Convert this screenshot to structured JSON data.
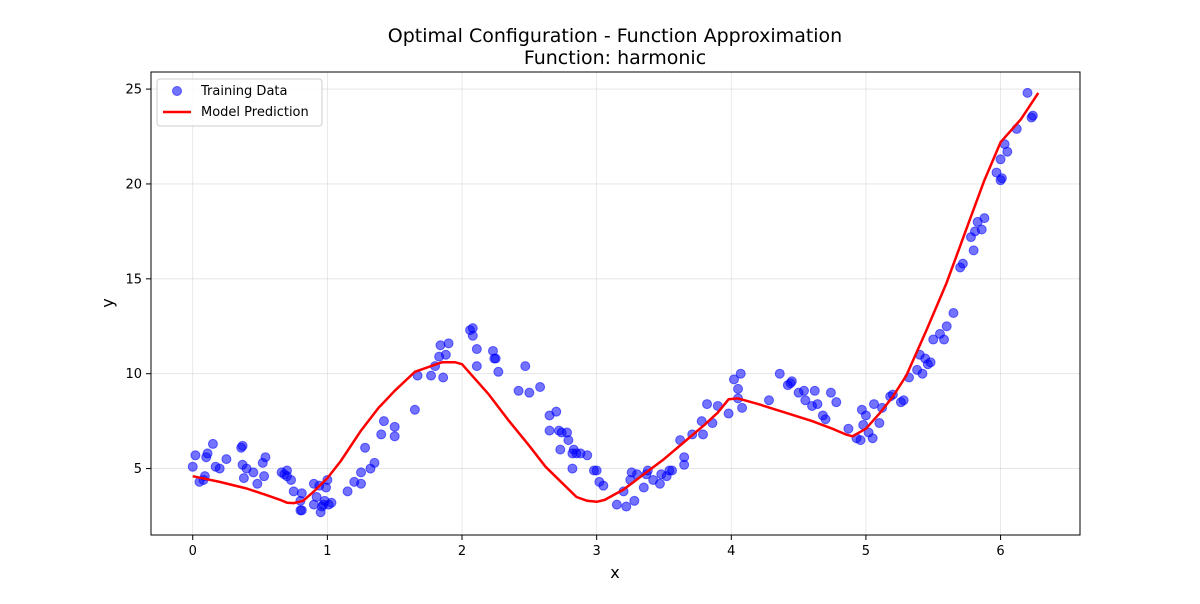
{
  "chart_data": {
    "type": "scatter",
    "title": "Optimal Configuration - Function Approximation",
    "subtitle": "Function: harmonic",
    "xlabel": "x",
    "ylabel": "y",
    "xlim": [
      -0.31,
      6.59
    ],
    "ylim": [
      1.5,
      25.9
    ],
    "xticks": [
      0,
      1,
      2,
      3,
      4,
      5,
      6
    ],
    "yticks": [
      5,
      10,
      15,
      20,
      25
    ],
    "grid": true,
    "legend_position": "top-left",
    "colors": {
      "scatter": "#0000ff",
      "line": "#ff0000"
    },
    "series": [
      {
        "name": "Training Data",
        "kind": "scatter",
        "points": [
          [
            0.0,
            5.1
          ],
          [
            0.02,
            5.7
          ],
          [
            0.05,
            4.3
          ],
          [
            0.08,
            4.4
          ],
          [
            0.09,
            4.6
          ],
          [
            0.1,
            5.6
          ],
          [
            0.11,
            5.8
          ],
          [
            0.15,
            6.3
          ],
          [
            0.17,
            5.1
          ],
          [
            0.2,
            5.0
          ],
          [
            0.25,
            5.5
          ],
          [
            0.36,
            6.1
          ],
          [
            0.37,
            6.2
          ],
          [
            0.37,
            5.2
          ],
          [
            0.38,
            4.5
          ],
          [
            0.4,
            5.0
          ],
          [
            0.45,
            4.8
          ],
          [
            0.48,
            4.2
          ],
          [
            0.52,
            5.3
          ],
          [
            0.54,
            5.6
          ],
          [
            0.53,
            4.6
          ],
          [
            0.66,
            4.8
          ],
          [
            0.68,
            4.7
          ],
          [
            0.7,
            4.9
          ],
          [
            0.7,
            4.6
          ],
          [
            0.73,
            4.4
          ],
          [
            0.75,
            3.8
          ],
          [
            0.8,
            3.3
          ],
          [
            0.8,
            2.8
          ],
          [
            0.81,
            2.8
          ],
          [
            0.81,
            3.7
          ],
          [
            0.9,
            4.2
          ],
          [
            0.9,
            3.1
          ],
          [
            0.92,
            3.5
          ],
          [
            0.94,
            4.1
          ],
          [
            0.95,
            2.7
          ],
          [
            0.96,
            3.0
          ],
          [
            0.97,
            3.1
          ],
          [
            0.98,
            3.3
          ],
          [
            0.99,
            4.0
          ],
          [
            1.0,
            4.4
          ],
          [
            1.01,
            3.1
          ],
          [
            1.03,
            3.2
          ],
          [
            1.15,
            3.8
          ],
          [
            1.2,
            4.3
          ],
          [
            1.25,
            4.2
          ],
          [
            1.25,
            4.8
          ],
          [
            1.28,
            6.1
          ],
          [
            1.32,
            5.0
          ],
          [
            1.35,
            5.3
          ],
          [
            1.4,
            6.8
          ],
          [
            1.42,
            7.5
          ],
          [
            1.5,
            6.7
          ],
          [
            1.5,
            7.2
          ],
          [
            1.65,
            8.1
          ],
          [
            1.67,
            9.9
          ],
          [
            1.77,
            9.9
          ],
          [
            1.8,
            10.4
          ],
          [
            1.83,
            10.9
          ],
          [
            1.84,
            11.5
          ],
          [
            1.86,
            9.8
          ],
          [
            1.88,
            11.0
          ],
          [
            1.9,
            11.6
          ],
          [
            2.06,
            12.3
          ],
          [
            2.08,
            12.4
          ],
          [
            2.08,
            12.0
          ],
          [
            2.11,
            11.3
          ],
          [
            2.11,
            10.4
          ],
          [
            2.23,
            11.2
          ],
          [
            2.24,
            10.8
          ],
          [
            2.25,
            10.8
          ],
          [
            2.27,
            10.1
          ],
          [
            2.42,
            9.1
          ],
          [
            2.47,
            10.4
          ],
          [
            2.5,
            9.0
          ],
          [
            2.58,
            9.3
          ],
          [
            2.65,
            7.8
          ],
          [
            2.65,
            7.0
          ],
          [
            2.7,
            8.0
          ],
          [
            2.72,
            7.0
          ],
          [
            2.74,
            6.9
          ],
          [
            2.73,
            6.0
          ],
          [
            2.78,
            6.9
          ],
          [
            2.79,
            6.5
          ],
          [
            2.82,
            5.0
          ],
          [
            2.82,
            5.8
          ],
          [
            2.83,
            6.0
          ],
          [
            2.85,
            5.8
          ],
          [
            2.88,
            5.8
          ],
          [
            2.93,
            5.7
          ],
          [
            2.98,
            4.9
          ],
          [
            3.0,
            4.9
          ],
          [
            3.02,
            4.3
          ],
          [
            3.05,
            4.1
          ],
          [
            3.15,
            3.1
          ],
          [
            3.2,
            3.8
          ],
          [
            3.22,
            3.0
          ],
          [
            3.25,
            4.4
          ],
          [
            3.26,
            4.8
          ],
          [
            3.28,
            3.3
          ],
          [
            3.3,
            4.7
          ],
          [
            3.35,
            4.0
          ],
          [
            3.37,
            4.7
          ],
          [
            3.38,
            4.9
          ],
          [
            3.42,
            4.4
          ],
          [
            3.47,
            4.2
          ],
          [
            3.48,
            4.7
          ],
          [
            3.52,
            4.6
          ],
          [
            3.54,
            4.9
          ],
          [
            3.56,
            4.9
          ],
          [
            3.62,
            6.5
          ],
          [
            3.65,
            5.2
          ],
          [
            3.65,
            5.6
          ],
          [
            3.71,
            6.8
          ],
          [
            3.78,
            7.5
          ],
          [
            3.79,
            6.8
          ],
          [
            3.82,
            8.4
          ],
          [
            3.86,
            7.4
          ],
          [
            3.9,
            8.3
          ],
          [
            3.98,
            7.9
          ],
          [
            4.02,
            9.7
          ],
          [
            4.05,
            8.7
          ],
          [
            4.05,
            9.2
          ],
          [
            4.07,
            10.0
          ],
          [
            4.08,
            8.2
          ],
          [
            4.28,
            8.6
          ],
          [
            4.36,
            10.0
          ],
          [
            4.42,
            9.4
          ],
          [
            4.44,
            9.5
          ],
          [
            4.45,
            9.6
          ],
          [
            4.5,
            9.0
          ],
          [
            4.54,
            9.1
          ],
          [
            4.55,
            8.6
          ],
          [
            4.6,
            8.3
          ],
          [
            4.62,
            9.1
          ],
          [
            4.64,
            8.4
          ],
          [
            4.68,
            7.8
          ],
          [
            4.7,
            7.6
          ],
          [
            4.74,
            9.0
          ],
          [
            4.78,
            8.5
          ],
          [
            4.87,
            7.1
          ],
          [
            4.93,
            6.6
          ],
          [
            4.96,
            6.5
          ],
          [
            4.97,
            8.1
          ],
          [
            4.98,
            7.3
          ],
          [
            5.0,
            7.8
          ],
          [
            5.02,
            6.9
          ],
          [
            5.05,
            6.6
          ],
          [
            5.06,
            8.4
          ],
          [
            5.1,
            7.4
          ],
          [
            5.12,
            8.2
          ],
          [
            5.18,
            8.8
          ],
          [
            5.2,
            8.9
          ],
          [
            5.26,
            8.5
          ],
          [
            5.28,
            8.6
          ],
          [
            5.32,
            9.8
          ],
          [
            5.38,
            10.2
          ],
          [
            5.4,
            11.0
          ],
          [
            5.42,
            10.0
          ],
          [
            5.44,
            10.8
          ],
          [
            5.46,
            10.5
          ],
          [
            5.48,
            10.6
          ],
          [
            5.5,
            11.8
          ],
          [
            5.55,
            12.1
          ],
          [
            5.58,
            11.8
          ],
          [
            5.6,
            12.5
          ],
          [
            5.65,
            13.2
          ],
          [
            5.7,
            15.6
          ],
          [
            5.72,
            15.8
          ],
          [
            5.78,
            17.2
          ],
          [
            5.8,
            16.5
          ],
          [
            5.81,
            17.5
          ],
          [
            5.83,
            18.0
          ],
          [
            5.86,
            17.6
          ],
          [
            5.88,
            18.2
          ],
          [
            5.97,
            20.6
          ],
          [
            6.0,
            20.2
          ],
          [
            6.01,
            20.3
          ],
          [
            6.0,
            21.3
          ],
          [
            6.03,
            22.1
          ],
          [
            6.05,
            21.7
          ],
          [
            6.12,
            22.9
          ],
          [
            6.2,
            24.8
          ],
          [
            6.23,
            23.5
          ],
          [
            6.24,
            23.6
          ]
        ]
      },
      {
        "name": "Model Prediction",
        "kind": "line",
        "points": [
          [
            0.0,
            4.6
          ],
          [
            0.2,
            4.3
          ],
          [
            0.4,
            3.95
          ],
          [
            0.55,
            3.6
          ],
          [
            0.65,
            3.35
          ],
          [
            0.7,
            3.2
          ],
          [
            0.75,
            3.18
          ],
          [
            0.82,
            3.3
          ],
          [
            0.9,
            3.8
          ],
          [
            1.0,
            4.5
          ],
          [
            1.1,
            5.4
          ],
          [
            1.25,
            7.0
          ],
          [
            1.38,
            8.2
          ],
          [
            1.5,
            9.1
          ],
          [
            1.65,
            10.1
          ],
          [
            1.85,
            10.6
          ],
          [
            1.95,
            10.6
          ],
          [
            2.0,
            10.5
          ],
          [
            2.1,
            9.7
          ],
          [
            2.2,
            8.9
          ],
          [
            2.35,
            7.5
          ],
          [
            2.5,
            6.2
          ],
          [
            2.62,
            5.1
          ],
          [
            2.75,
            4.2
          ],
          [
            2.85,
            3.5
          ],
          [
            2.93,
            3.3
          ],
          [
            3.0,
            3.25
          ],
          [
            3.06,
            3.35
          ],
          [
            3.2,
            3.9
          ],
          [
            3.35,
            4.7
          ],
          [
            3.5,
            5.5
          ],
          [
            3.65,
            6.4
          ],
          [
            3.8,
            7.3
          ],
          [
            3.9,
            7.95
          ],
          [
            3.98,
            8.65
          ],
          [
            4.05,
            8.7
          ],
          [
            4.2,
            8.4
          ],
          [
            4.4,
            7.95
          ],
          [
            4.6,
            7.5
          ],
          [
            4.75,
            7.1
          ],
          [
            4.85,
            6.8
          ],
          [
            4.9,
            6.7
          ],
          [
            5.0,
            7.1
          ],
          [
            5.1,
            7.9
          ],
          [
            5.2,
            8.8
          ],
          [
            5.3,
            9.9
          ],
          [
            5.45,
            12.3
          ],
          [
            5.6,
            14.8
          ],
          [
            5.75,
            17.7
          ],
          [
            5.88,
            20.2
          ],
          [
            6.0,
            22.2
          ],
          [
            6.15,
            23.4
          ],
          [
            6.28,
            24.8
          ]
        ]
      }
    ]
  }
}
